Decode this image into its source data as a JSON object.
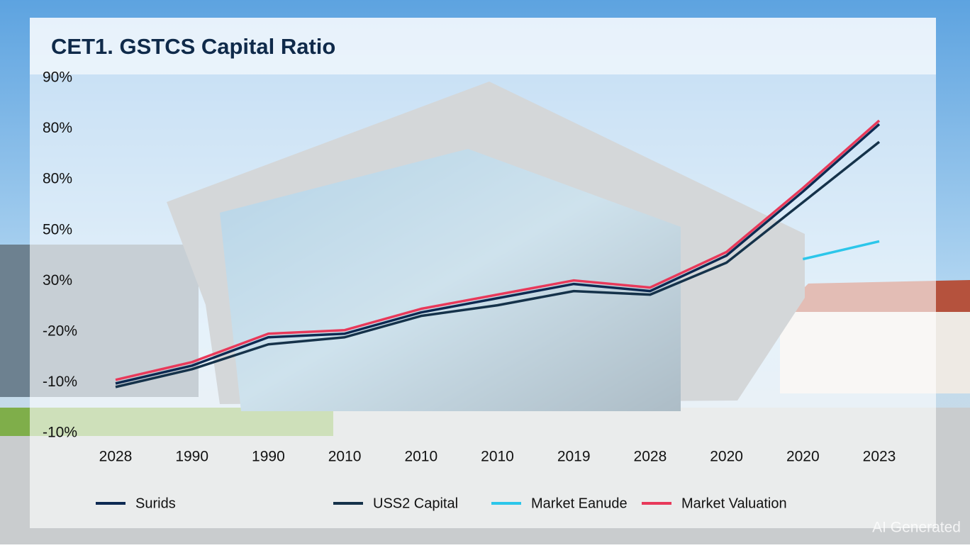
{
  "chart_data": {
    "type": "line",
    "title": "CET1. GSTCS Capital Ratio",
    "categories": [
      "2028",
      "1990",
      "1990",
      "2010",
      "2010",
      "2010",
      "2019",
      "2028",
      "2020",
      "2020",
      "2023"
    ],
    "y_labels": [
      "90%",
      "80%",
      "80%",
      "50%",
      "30%",
      "-20%",
      "-10%",
      "-10%"
    ],
    "ylim": [
      -10,
      90
    ],
    "series": [
      {
        "name": "Surids",
        "color": "#0d2a52",
        "values": [
          4,
          9,
          17,
          18,
          24,
          28,
          32,
          30,
          40,
          58,
          77
        ]
      },
      {
        "name": "USS2 Capital",
        "color": "#15324a",
        "values": [
          3,
          8,
          15,
          17,
          23,
          26,
          30,
          29,
          38,
          55,
          72
        ]
      },
      {
        "name": "Market Eanude",
        "color": "#2cc6ea",
        "values": [
          null,
          null,
          null,
          null,
          null,
          null,
          null,
          null,
          null,
          39,
          44
        ]
      },
      {
        "name": "Market Valuation",
        "color": "#e8395a",
        "values": [
          5,
          10,
          18,
          19,
          25,
          29,
          33,
          31,
          41,
          59,
          78
        ]
      }
    ],
    "watermark": "AI Generated"
  }
}
